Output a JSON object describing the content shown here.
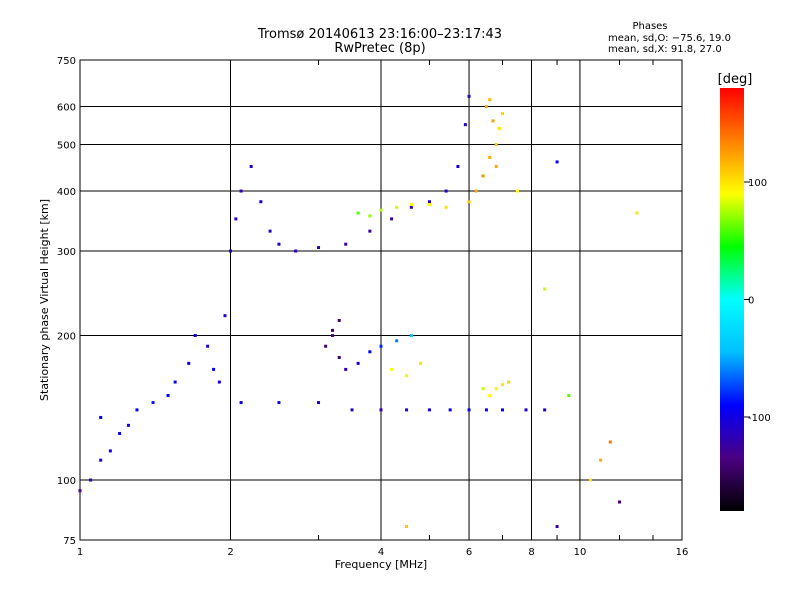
{
  "title": "Tromsø 20140613 23:16:00–23:17:43",
  "subtitle": "RwPretec (8p)",
  "phase_stats": {
    "heading": "Phases",
    "o_line": "mean, sd,O: −75.6, 19.0",
    "x_line": "mean, sd,X:  91.8, 27.0"
  },
  "chart_data": {
    "type": "scatter",
    "x_scale": "log",
    "y_scale": "log",
    "xlabel": "Frequency [MHz]",
    "ylabel": "Stationary phase Virtual Height [km]",
    "xlim": [
      1,
      16
    ],
    "ylim": [
      75,
      750
    ],
    "x_ticks": [
      1,
      2,
      4,
      6,
      8,
      10,
      16
    ],
    "y_ticks": [
      75,
      100,
      200,
      300,
      400,
      500,
      600,
      750
    ],
    "x_minor_ticks": [
      3,
      5,
      7,
      9,
      12,
      14
    ],
    "grid": true,
    "colorbar": {
      "label": "[deg]",
      "range": [
        -180,
        180
      ],
      "ticks": [
        100,
        0,
        -100
      ],
      "colors": [
        "#000000",
        "#4b0082",
        "#0000ff",
        "#00bfff",
        "#00ffff",
        "#00ff00",
        "#ffff00",
        "#ff8000",
        "#ff0000"
      ]
    },
    "series": [
      {
        "points": [
          [
            1.0,
            95,
            -130
          ],
          [
            1.05,
            100,
            -120
          ],
          [
            1.1,
            110,
            -110
          ],
          [
            1.15,
            115,
            -100
          ],
          [
            1.2,
            125,
            -95
          ],
          [
            1.1,
            135,
            -90
          ],
          [
            1.25,
            130,
            -95
          ],
          [
            1.3,
            140,
            -90
          ],
          [
            1.4,
            145,
            -85
          ],
          [
            1.5,
            150,
            -90
          ],
          [
            1.55,
            160,
            -95
          ],
          [
            1.65,
            175,
            -95
          ],
          [
            1.7,
            200,
            -100
          ],
          [
            1.8,
            190,
            -105
          ],
          [
            1.85,
            170,
            -95
          ],
          [
            1.9,
            160,
            -100
          ],
          [
            1.95,
            220,
            -110
          ],
          [
            2.0,
            300,
            -115
          ],
          [
            2.05,
            350,
            -120
          ],
          [
            2.1,
            400,
            -115
          ],
          [
            2.2,
            450,
            -110
          ],
          [
            2.3,
            380,
            -105
          ],
          [
            2.4,
            330,
            -110
          ],
          [
            2.5,
            310,
            -110
          ],
          [
            2.7,
            300,
            -115
          ],
          [
            3.0,
            305,
            -120
          ],
          [
            3.4,
            310,
            -125
          ],
          [
            3.8,
            330,
            -125
          ],
          [
            4.2,
            350,
            -120
          ],
          [
            4.6,
            370,
            -115
          ],
          [
            5.0,
            380,
            -110
          ],
          [
            5.4,
            400,
            -110
          ],
          [
            5.7,
            450,
            -105
          ],
          [
            5.9,
            550,
            -110
          ],
          [
            6.0,
            630,
            -115
          ]
        ]
      },
      {
        "points": [
          [
            2.1,
            145,
            -95
          ],
          [
            2.5,
            145,
            -100
          ],
          [
            3.0,
            145,
            -105
          ],
          [
            3.5,
            140,
            -110
          ],
          [
            4.0,
            140,
            -115
          ],
          [
            4.5,
            140,
            -115
          ],
          [
            5.0,
            140,
            -105
          ],
          [
            5.5,
            140,
            -100
          ],
          [
            6.0,
            140,
            -95
          ],
          [
            6.5,
            140,
            -95
          ],
          [
            7.0,
            140,
            -100
          ],
          [
            7.8,
            140,
            -105
          ],
          [
            8.5,
            140,
            -110
          ]
        ]
      },
      {
        "points": [
          [
            3.1,
            190,
            -140
          ],
          [
            3.2,
            200,
            -135
          ],
          [
            3.3,
            180,
            -130
          ],
          [
            3.4,
            170,
            -120
          ],
          [
            3.6,
            175,
            -110
          ],
          [
            3.8,
            185,
            -90
          ],
          [
            4.0,
            190,
            -80
          ],
          [
            4.3,
            195,
            -60
          ],
          [
            4.6,
            200,
            -40
          ],
          [
            3.3,
            215,
            -140
          ],
          [
            3.2,
            205,
            -145
          ]
        ]
      },
      {
        "points": [
          [
            3.6,
            360,
            60
          ],
          [
            3.8,
            355,
            70
          ],
          [
            4.0,
            365,
            75
          ],
          [
            4.3,
            370,
            80
          ],
          [
            4.6,
            375,
            90
          ],
          [
            5.0,
            375,
            95
          ],
          [
            5.4,
            370,
            100
          ]
        ]
      },
      {
        "points": [
          [
            6.0,
            380,
            110
          ],
          [
            6.2,
            400,
            120
          ],
          [
            6.4,
            430,
            130
          ],
          [
            6.6,
            470,
            120
          ],
          [
            6.8,
            500,
            110
          ],
          [
            6.9,
            540,
            100
          ],
          [
            7.0,
            580,
            105
          ],
          [
            6.6,
            620,
            115
          ],
          [
            6.5,
            600,
            120
          ],
          [
            6.7,
            560,
            125
          ],
          [
            6.8,
            450,
            120
          ]
        ]
      },
      {
        "points": [
          [
            6.4,
            155,
            80
          ],
          [
            6.6,
            150,
            90
          ],
          [
            6.8,
            155,
            95
          ],
          [
            7.0,
            158,
            100
          ],
          [
            7.2,
            160,
            105
          ],
          [
            4.2,
            170,
            90
          ],
          [
            4.5,
            165,
            95
          ],
          [
            4.8,
            175,
            100
          ]
        ]
      },
      {
        "points": [
          [
            10.5,
            100,
            100
          ],
          [
            11.0,
            110,
            120
          ],
          [
            11.5,
            120,
            140
          ],
          [
            12.0,
            90,
            -140
          ],
          [
            9.0,
            80,
            -120
          ],
          [
            9.5,
            150,
            60
          ],
          [
            8.5,
            250,
            80
          ],
          [
            13.0,
            360,
            100
          ],
          [
            7.5,
            400,
            90
          ],
          [
            9.0,
            460,
            -90
          ],
          [
            4.5,
            80,
            110
          ]
        ]
      }
    ]
  }
}
